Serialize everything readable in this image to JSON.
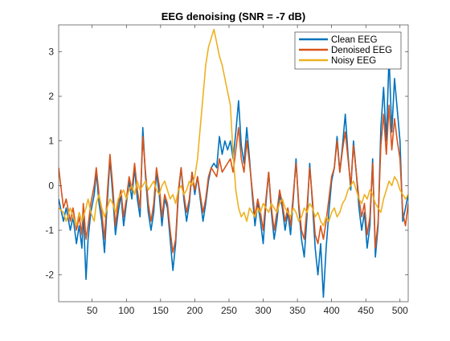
{
  "chart_data": {
    "type": "line",
    "title": "EEG denoising (SNR = -7 dB)",
    "xlabel": "",
    "ylabel": "",
    "xlim": [
      1,
      512
    ],
    "ylim": [
      -2.6,
      3.6
    ],
    "xticks": [
      50,
      100,
      150,
      200,
      250,
      300,
      350,
      400,
      450,
      500
    ],
    "yticks": [
      -2,
      -1,
      0,
      1,
      2,
      3
    ],
    "grid": false,
    "legend_position": "top-right",
    "series": [
      {
        "name": "Clean EEG",
        "color": "#0072BD",
        "x": [
          1,
          8,
          12,
          18,
          22,
          27,
          31,
          35,
          37,
          41,
          44,
          48,
          53,
          56,
          60,
          64,
          68,
          72,
          76,
          80,
          84,
          88,
          92,
          96,
          100,
          104,
          108,
          112,
          116,
          120,
          124,
          128,
          132,
          136,
          140,
          144,
          148,
          152,
          156,
          160,
          164,
          168,
          172,
          176,
          180,
          184,
          188,
          192,
          196,
          200,
          204,
          208,
          212,
          216,
          220,
          224,
          228,
          232,
          236,
          240,
          244,
          248,
          252,
          256,
          260,
          264,
          268,
          272,
          276,
          280,
          284,
          288,
          292,
          296,
          300,
          304,
          308,
          312,
          316,
          320,
          324,
          328,
          332,
          336,
          340,
          344,
          348,
          352,
          356,
          360,
          364,
          368,
          372,
          376,
          380,
          384,
          388,
          392,
          396,
          400,
          404,
          408,
          412,
          416,
          420,
          424,
          428,
          432,
          436,
          440,
          444,
          448,
          452,
          456,
          460,
          464,
          468,
          472,
          476,
          480,
          484,
          488,
          492,
          496,
          500,
          504,
          508,
          512
        ],
        "values": [
          -0.3,
          -0.8,
          -0.5,
          -1.0,
          -0.7,
          -1.3,
          -0.9,
          -1.4,
          -0.6,
          -2.1,
          -1.2,
          -0.6,
          -0.2,
          0.3,
          -0.4,
          -0.8,
          -1.5,
          -0.4,
          0.6,
          -0.2,
          -1.1,
          -0.6,
          -0.2,
          -0.9,
          -0.4,
          0.1,
          -0.3,
          0.4,
          -0.3,
          -0.7,
          1.3,
          0.2,
          -0.6,
          -1.0,
          -0.6,
          0.3,
          -0.2,
          -0.9,
          -0.3,
          -0.5,
          -1.2,
          -1.9,
          -1.3,
          -0.2,
          0.4,
          -0.3,
          -0.8,
          -0.4,
          0.3,
          -0.2,
          0.2,
          -0.3,
          -0.8,
          -0.4,
          0.1,
          0.4,
          0.5,
          0.4,
          1.1,
          0.7,
          1.0,
          0.8,
          1.0,
          0.6,
          1.2,
          1.9,
          0.9,
          0.5,
          1.3,
          0.6,
          -0.2,
          -0.9,
          -0.4,
          -0.8,
          -1.3,
          -0.4,
          0.3,
          -0.6,
          -1.2,
          -0.8,
          -0.2,
          -0.5,
          -1.0,
          -0.6,
          -1.1,
          -0.3,
          0.6,
          -0.5,
          -1.2,
          -1.6,
          -0.7,
          0.5,
          -0.4,
          -1.4,
          -2.0,
          -1.3,
          -2.5,
          -1.4,
          -0.6,
          0.1,
          0.4,
          1.1,
          0.3,
          0.9,
          1.6,
          0.7,
          -0.1,
          1.0,
          0.3,
          -0.5,
          -1.0,
          -0.6,
          -1.4,
          -0.9,
          0.6,
          -1.6,
          -0.9,
          1.3,
          2.2,
          1.0,
          2.9,
          1.2,
          2.4,
          1.7,
          1.0,
          -0.8,
          -0.5,
          -0.2
        ]
      },
      {
        "name": "Denoised EEG",
        "color": "#D95319",
        "x": [
          1,
          8,
          12,
          18,
          22,
          27,
          31,
          35,
          37,
          41,
          44,
          48,
          53,
          56,
          60,
          64,
          68,
          72,
          76,
          80,
          84,
          88,
          92,
          96,
          100,
          104,
          108,
          112,
          116,
          120,
          124,
          128,
          132,
          136,
          140,
          144,
          148,
          152,
          156,
          160,
          164,
          168,
          172,
          176,
          180,
          184,
          188,
          192,
          196,
          200,
          204,
          208,
          212,
          216,
          220,
          224,
          228,
          232,
          236,
          240,
          244,
          248,
          252,
          256,
          260,
          264,
          268,
          272,
          276,
          280,
          284,
          288,
          292,
          296,
          300,
          304,
          308,
          312,
          316,
          320,
          324,
          328,
          332,
          336,
          340,
          344,
          348,
          352,
          356,
          360,
          364,
          368,
          372,
          376,
          380,
          384,
          388,
          392,
          396,
          400,
          404,
          408,
          412,
          416,
          420,
          424,
          428,
          432,
          436,
          440,
          444,
          448,
          452,
          456,
          460,
          464,
          468,
          472,
          476,
          480,
          484,
          488,
          492,
          496,
          500,
          504,
          508,
          512
        ],
        "values": [
          0.4,
          -0.5,
          -0.3,
          -0.8,
          -0.5,
          -1.0,
          -0.7,
          -1.1,
          -0.4,
          -1.2,
          -0.9,
          -0.4,
          0.0,
          0.4,
          -0.2,
          -0.6,
          -1.2,
          -0.2,
          0.7,
          0.0,
          -0.9,
          -0.4,
          -0.1,
          -0.7,
          -0.3,
          0.2,
          -0.1,
          0.5,
          -0.1,
          -0.5,
          1.1,
          0.3,
          -0.4,
          -0.8,
          -0.4,
          0.4,
          0.0,
          -0.7,
          -0.2,
          -0.4,
          -1.0,
          -1.5,
          -1.2,
          -0.1,
          0.4,
          -0.2,
          -0.6,
          -0.3,
          0.3,
          -0.1,
          0.2,
          -0.2,
          -0.6,
          -0.3,
          0.2,
          0.4,
          0.3,
          0.2,
          0.6,
          0.3,
          0.4,
          0.5,
          0.6,
          0.3,
          0.8,
          1.3,
          0.6,
          0.3,
          1.0,
          0.5,
          -0.1,
          -0.7,
          -0.3,
          -0.6,
          -1.0,
          -0.3,
          0.3,
          -0.5,
          -1.0,
          -0.6,
          -0.1,
          -0.4,
          -0.8,
          -0.5,
          -0.9,
          -0.2,
          0.5,
          -0.4,
          -1.0,
          -1.2,
          -0.5,
          0.4,
          -0.3,
          -1.1,
          -1.3,
          -0.9,
          -1.2,
          -0.8,
          -0.3,
          0.2,
          0.4,
          1.0,
          0.3,
          0.8,
          1.2,
          0.6,
          0.0,
          0.9,
          0.3,
          -0.3,
          -0.7,
          -0.4,
          -1.1,
          -0.7,
          0.5,
          -1.4,
          -0.8,
          0.9,
          1.6,
          0.7,
          1.8,
          0.8,
          1.5,
          1.0,
          0.6,
          -0.6,
          -0.9,
          -0.4
        ]
      },
      {
        "name": "Noisy EEG",
        "color": "#EDB120",
        "x": [
          1,
          8,
          12,
          18,
          22,
          27,
          31,
          35,
          37,
          41,
          44,
          48,
          53,
          56,
          60,
          64,
          68,
          72,
          76,
          80,
          84,
          88,
          92,
          96,
          100,
          104,
          108,
          112,
          116,
          120,
          124,
          128,
          132,
          136,
          140,
          144,
          148,
          152,
          156,
          160,
          164,
          168,
          172,
          176,
          180,
          184,
          188,
          192,
          196,
          200,
          204,
          208,
          212,
          216,
          220,
          224,
          228,
          232,
          236,
          240,
          244,
          248,
          252,
          256,
          260,
          264,
          268,
          272,
          276,
          280,
          284,
          288,
          292,
          296,
          300,
          304,
          308,
          312,
          316,
          320,
          324,
          328,
          332,
          336,
          340,
          344,
          348,
          352,
          356,
          360,
          364,
          368,
          372,
          376,
          380,
          384,
          388,
          392,
          396,
          400,
          404,
          408,
          412,
          416,
          420,
          424,
          428,
          432,
          436,
          440,
          444,
          448,
          452,
          456,
          460,
          464,
          468,
          472,
          476,
          480,
          484,
          488,
          492,
          496,
          500,
          504,
          508,
          512
        ],
        "values": [
          -0.5,
          -0.6,
          -0.8,
          -0.5,
          -0.7,
          -0.9,
          -0.6,
          -0.8,
          -0.7,
          -0.5,
          -0.3,
          -0.6,
          -0.8,
          -0.4,
          -0.2,
          -0.5,
          -0.7,
          -0.5,
          -0.3,
          -0.4,
          -0.6,
          -0.3,
          -0.2,
          -0.1,
          -0.3,
          -0.1,
          0.0,
          -0.2,
          0.1,
          -0.1,
          0.0,
          0.1,
          -0.1,
          0.0,
          0.1,
          -0.1,
          -0.2,
          0.0,
          0.1,
          -0.1,
          -0.3,
          -0.2,
          -0.4,
          -0.1,
          0.0,
          -0.2,
          -0.1,
          0.1,
          0.0,
          0.2,
          0.6,
          1.3,
          2.0,
          2.7,
          3.1,
          3.3,
          3.5,
          3.2,
          2.9,
          2.7,
          2.4,
          2.1,
          1.8,
          0.7,
          -0.1,
          -0.5,
          -0.7,
          -0.6,
          -0.8,
          -0.5,
          -0.6,
          -0.7,
          -0.5,
          -0.6,
          -0.4,
          -0.5,
          -0.6,
          -0.4,
          -0.5,
          -0.6,
          -0.4,
          -0.3,
          -0.5,
          -0.6,
          -0.7,
          -0.5,
          -0.6,
          -0.8,
          -0.7,
          -0.5,
          -0.6,
          -0.4,
          -0.5,
          -0.7,
          -0.6,
          -0.8,
          -0.9,
          -0.7,
          -0.8,
          -0.6,
          -0.5,
          -0.7,
          -0.6,
          -0.4,
          -0.3,
          -0.1,
          0.0,
          0.1,
          -0.1,
          -0.3,
          -0.4,
          -0.2,
          -0.3,
          -0.1,
          -0.2,
          -0.4,
          -0.5,
          -0.6,
          -0.3,
          -0.1,
          0.1,
          0.0,
          0.2,
          0.1,
          -0.1,
          -0.2,
          -0.3,
          -0.2
        ]
      }
    ]
  }
}
